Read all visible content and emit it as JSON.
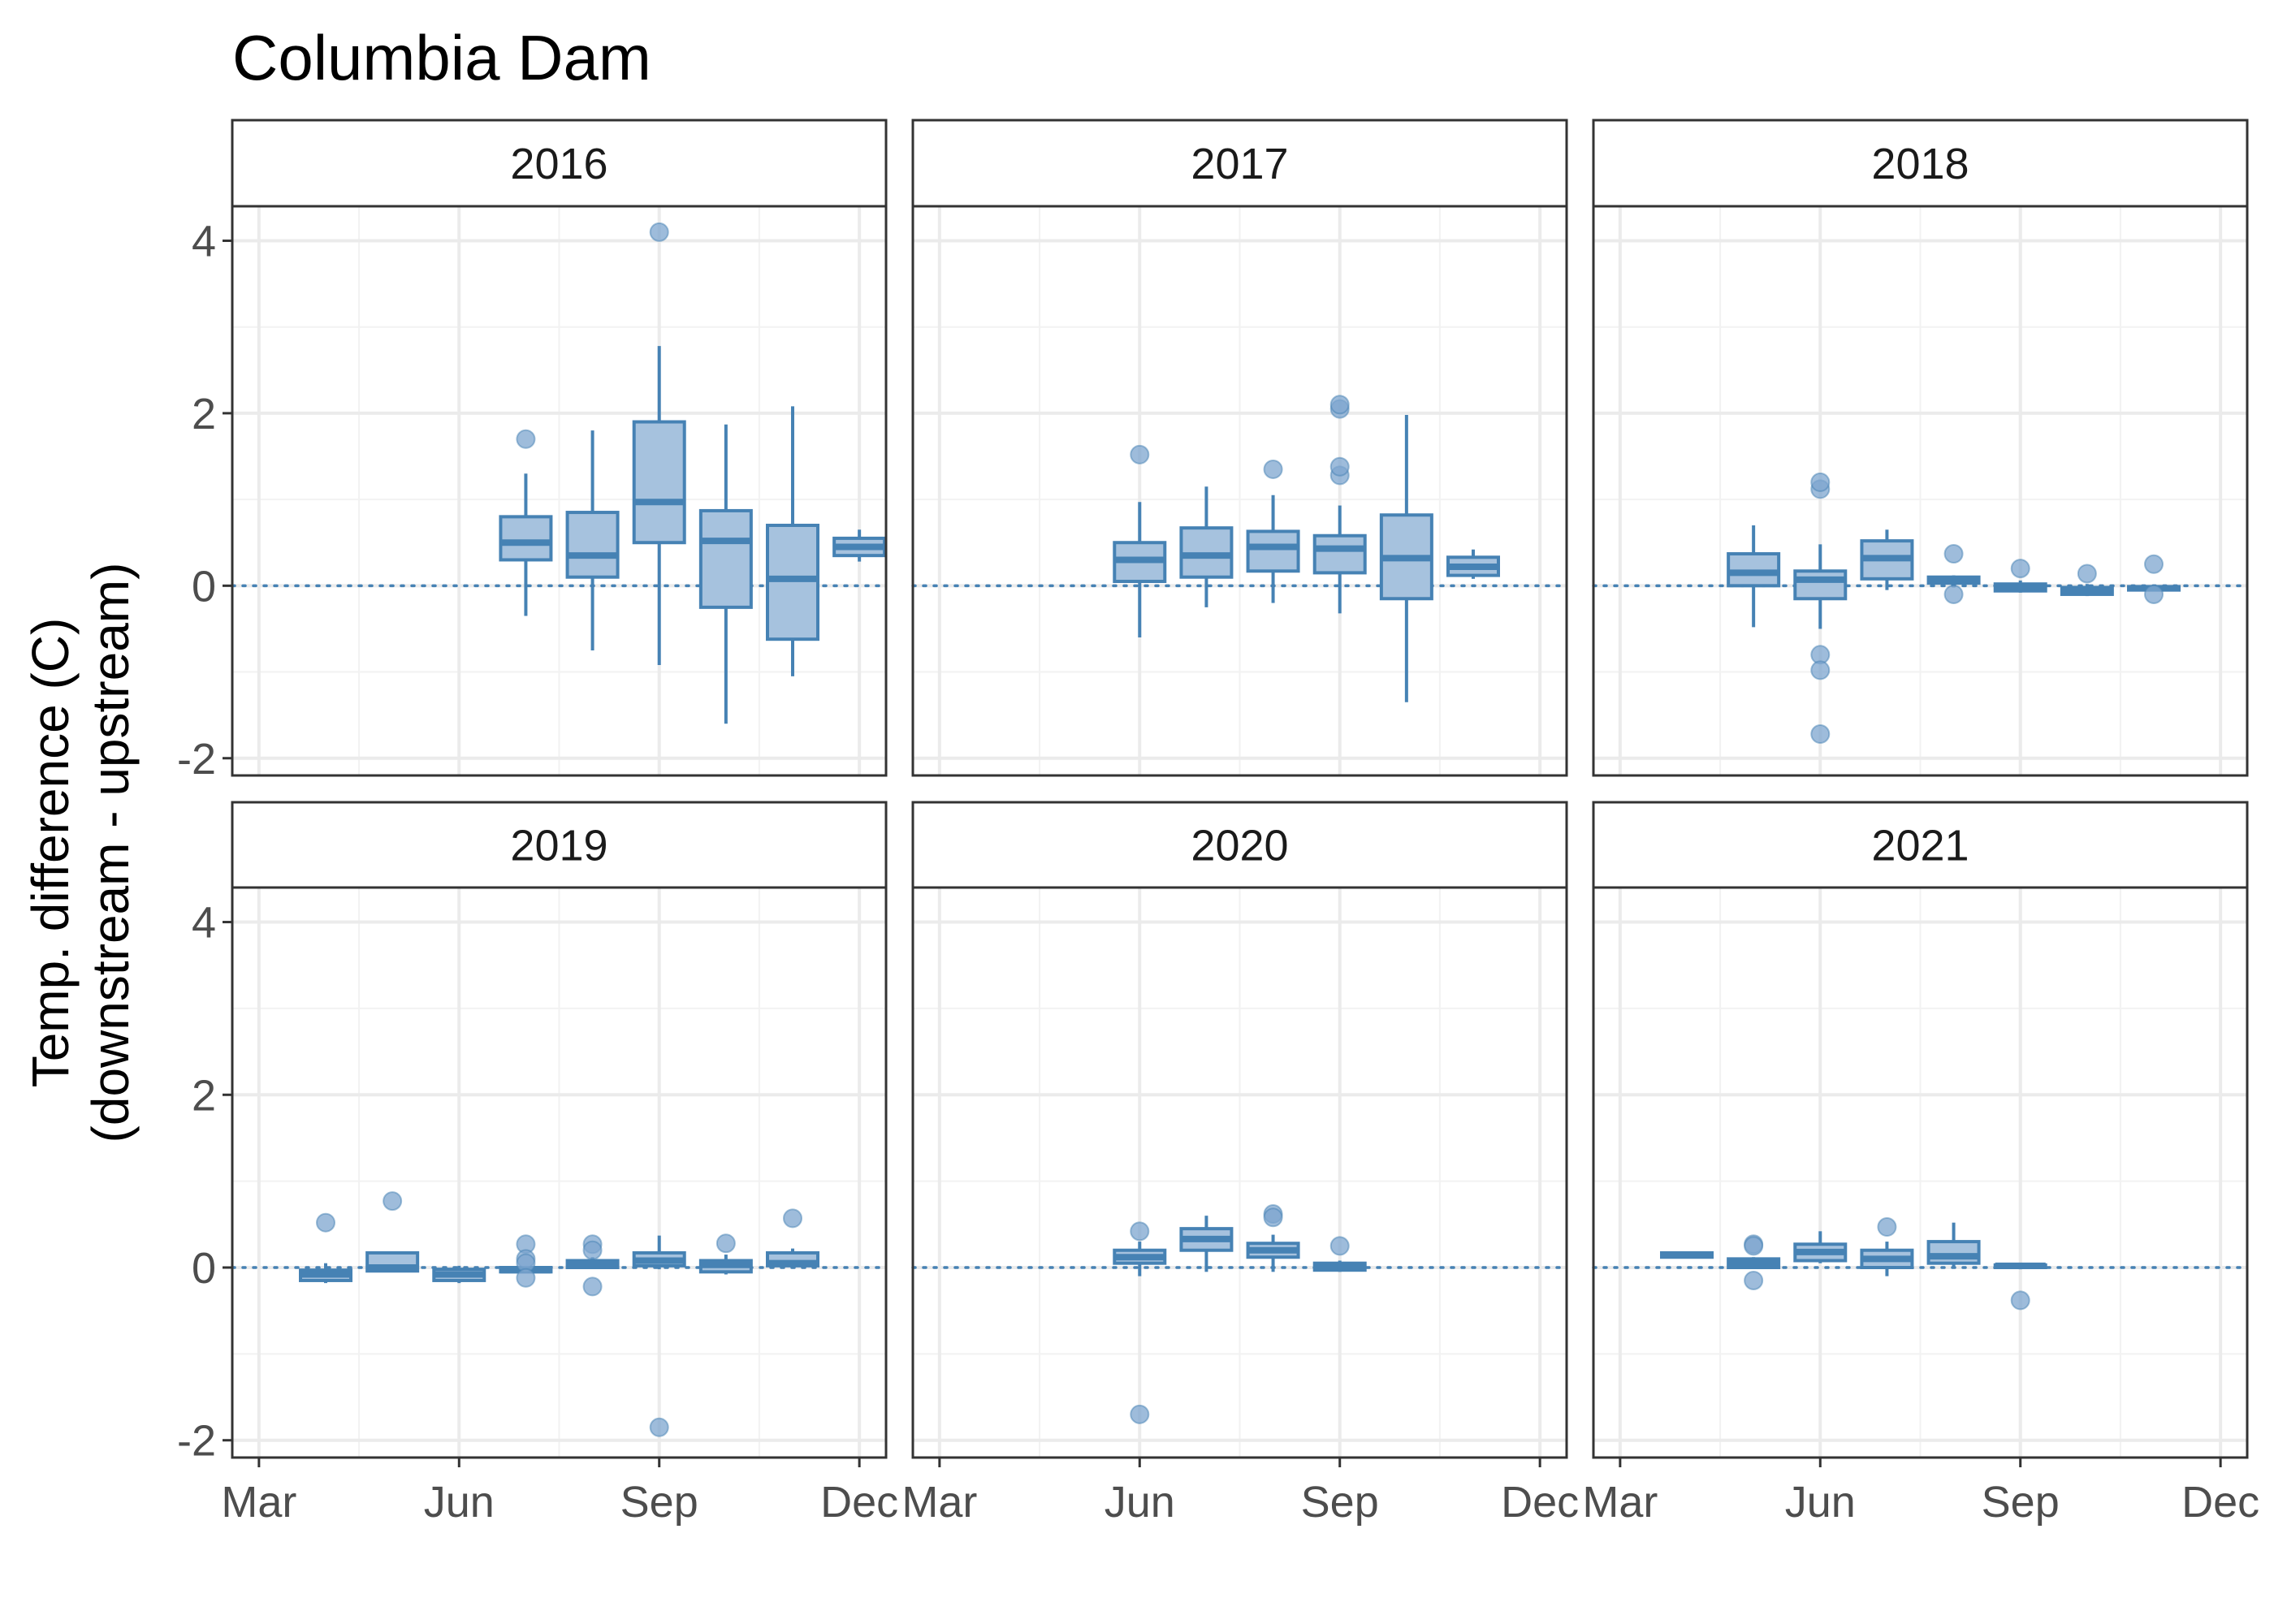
{
  "chart_data": {
    "type": "boxplot",
    "title": "Columbia Dam",
    "ylabel": [
      "Temp. difference (C)",
      "(downstream - upstream)"
    ],
    "xlabel": "",
    "x_axis": {
      "range_months": [
        2.6,
        12.4
      ],
      "ticks": [
        {
          "month": 3,
          "label": "Mar"
        },
        {
          "month": 6,
          "label": "Jun"
        },
        {
          "month": 9,
          "label": "Sep"
        },
        {
          "month": 12,
          "label": "Dec"
        }
      ]
    },
    "y_axis": {
      "range": [
        -2.2,
        4.4
      ],
      "ticks": [
        -2,
        0,
        2,
        4
      ],
      "tick_labels": [
        "-2",
        "0",
        "2",
        "4"
      ]
    },
    "reference_line": {
      "y": 0,
      "style": "dotted"
    },
    "grid": true,
    "facet_layout": {
      "rows": 2,
      "cols": 3
    },
    "colors": {
      "box_fill": "#a6c2de",
      "box_stroke": "#4682b4",
      "outlier_fill": "#7ea6cf",
      "grid": "#ebebeb",
      "panel_border": "#333333"
    },
    "facets": [
      {
        "label": "2016",
        "boxes": [
          {
            "month": 7.0,
            "whisker_low": -0.35,
            "q1": 0.3,
            "median": 0.5,
            "q3": 0.8,
            "whisker_high": 1.3,
            "outliers": [
              1.7
            ]
          },
          {
            "month": 8.0,
            "whisker_low": -0.75,
            "q1": 0.1,
            "median": 0.35,
            "q3": 0.85,
            "whisker_high": 1.8,
            "outliers": []
          },
          {
            "month": 9.0,
            "whisker_low": -0.92,
            "q1": 0.5,
            "median": 0.97,
            "q3": 1.9,
            "whisker_high": 2.78,
            "outliers": [
              4.1
            ]
          },
          {
            "month": 10.0,
            "whisker_low": -1.6,
            "q1": -0.25,
            "median": 0.52,
            "q3": 0.87,
            "whisker_high": 1.87,
            "outliers": []
          },
          {
            "month": 11.0,
            "whisker_low": -1.05,
            "q1": -0.62,
            "median": 0.08,
            "q3": 0.7,
            "whisker_high": 2.08,
            "outliers": []
          },
          {
            "month": 12.0,
            "whisker_low": 0.28,
            "q1": 0.35,
            "median": 0.45,
            "q3": 0.55,
            "whisker_high": 0.65,
            "outliers": []
          }
        ]
      },
      {
        "label": "2017",
        "boxes": [
          {
            "month": 6.0,
            "whisker_low": -0.6,
            "q1": 0.05,
            "median": 0.3,
            "q3": 0.5,
            "whisker_high": 0.97,
            "outliers": [
              1.52
            ]
          },
          {
            "month": 7.0,
            "whisker_low": -0.25,
            "q1": 0.1,
            "median": 0.35,
            "q3": 0.67,
            "whisker_high": 1.15,
            "outliers": []
          },
          {
            "month": 8.0,
            "whisker_low": -0.2,
            "q1": 0.17,
            "median": 0.45,
            "q3": 0.63,
            "whisker_high": 1.05,
            "outliers": [
              1.35
            ]
          },
          {
            "month": 9.0,
            "whisker_low": -0.32,
            "q1": 0.15,
            "median": 0.43,
            "q3": 0.58,
            "whisker_high": 0.93,
            "outliers": [
              1.28,
              1.38,
              2.05,
              2.1
            ]
          },
          {
            "month": 10.0,
            "whisker_low": -1.35,
            "q1": -0.15,
            "median": 0.32,
            "q3": 0.82,
            "whisker_high": 1.98,
            "outliers": []
          },
          {
            "month": 11.0,
            "whisker_low": 0.08,
            "q1": 0.12,
            "median": 0.22,
            "q3": 0.33,
            "whisker_high": 0.42,
            "outliers": []
          }
        ]
      },
      {
        "label": "2018",
        "boxes": [
          {
            "month": 5.0,
            "whisker_low": -0.48,
            "q1": 0.0,
            "median": 0.15,
            "q3": 0.37,
            "whisker_high": 0.7,
            "outliers": []
          },
          {
            "month": 6.0,
            "whisker_low": -0.5,
            "q1": -0.15,
            "median": 0.07,
            "q3": 0.17,
            "whisker_high": 0.48,
            "outliers": [
              1.12,
              1.2,
              -0.8,
              -0.98,
              -1.72
            ]
          },
          {
            "month": 7.0,
            "whisker_low": -0.05,
            "q1": 0.08,
            "median": 0.32,
            "q3": 0.52,
            "whisker_high": 0.65,
            "outliers": []
          },
          {
            "month": 8.0,
            "whisker_low": -0.02,
            "q1": 0.03,
            "median": 0.07,
            "q3": 0.1,
            "whisker_high": 0.12,
            "outliers": [
              0.37,
              -0.1
            ]
          },
          {
            "month": 9.0,
            "whisker_low": -0.08,
            "q1": -0.06,
            "median": -0.02,
            "q3": 0.02,
            "whisker_high": 0.06,
            "outliers": [
              0.2
            ]
          },
          {
            "month": 10.0,
            "whisker_low": -0.12,
            "q1": -0.1,
            "median": -0.06,
            "q3": -0.02,
            "whisker_high": 0.02,
            "outliers": [
              0.14
            ]
          },
          {
            "month": 11.0,
            "whisker_low": -0.06,
            "q1": -0.05,
            "median": -0.03,
            "q3": -0.01,
            "whisker_high": 0.0,
            "outliers": [
              0.25,
              -0.1
            ]
          }
        ]
      },
      {
        "label": "2019",
        "boxes": [
          {
            "month": 4.0,
            "whisker_low": -0.18,
            "q1": -0.15,
            "median": -0.08,
            "q3": -0.03,
            "whisker_high": 0.05,
            "outliers": [
              0.52
            ]
          },
          {
            "month": 5.0,
            "whisker_low": -0.05,
            "q1": -0.04,
            "median": 0.0,
            "q3": 0.17,
            "whisker_high": 0.18,
            "outliers": [
              0.77
            ]
          },
          {
            "month": 6.0,
            "whisker_low": -0.18,
            "q1": -0.15,
            "median": -0.08,
            "q3": -0.02,
            "whisker_high": 0.02,
            "outliers": []
          },
          {
            "month": 7.0,
            "whisker_low": -0.05,
            "q1": -0.05,
            "median": -0.03,
            "q3": 0.0,
            "whisker_high": 0.02,
            "outliers": [
              0.27,
              0.1,
              0.05,
              -0.12
            ]
          },
          {
            "month": 8.0,
            "whisker_low": 0.0,
            "q1": 0.0,
            "median": 0.03,
            "q3": 0.08,
            "whisker_high": 0.12,
            "outliers": [
              0.27,
              0.2,
              -0.22
            ]
          },
          {
            "month": 9.0,
            "whisker_low": -0.02,
            "q1": 0.02,
            "median": 0.08,
            "q3": 0.17,
            "whisker_high": 0.37,
            "outliers": [
              -1.85
            ]
          },
          {
            "month": 10.0,
            "whisker_low": -0.08,
            "q1": -0.05,
            "median": 0.03,
            "q3": 0.08,
            "whisker_high": 0.15,
            "outliers": [
              0.28
            ]
          },
          {
            "month": 11.0,
            "whisker_low": 0.0,
            "q1": 0.02,
            "median": 0.05,
            "q3": 0.17,
            "whisker_high": 0.22,
            "outliers": [
              0.57
            ]
          }
        ]
      },
      {
        "label": "2020",
        "boxes": [
          {
            "month": 6.0,
            "whisker_low": -0.1,
            "q1": 0.05,
            "median": 0.12,
            "q3": 0.2,
            "whisker_high": 0.3,
            "outliers": [
              0.42,
              -1.7
            ]
          },
          {
            "month": 7.0,
            "whisker_low": -0.05,
            "q1": 0.2,
            "median": 0.33,
            "q3": 0.45,
            "whisker_high": 0.6,
            "outliers": []
          },
          {
            "month": 8.0,
            "whisker_low": -0.05,
            "q1": 0.12,
            "median": 0.2,
            "q3": 0.28,
            "whisker_high": 0.38,
            "outliers": [
              0.62,
              0.58
            ]
          },
          {
            "month": 9.0,
            "whisker_low": -0.05,
            "q1": -0.03,
            "median": 0.02,
            "q3": 0.05,
            "whisker_high": 0.08,
            "outliers": [
              0.25
            ]
          }
        ]
      },
      {
        "label": "2021",
        "boxes": [
          {
            "month": 4.0,
            "whisker_low": 0.12,
            "q1": 0.12,
            "median": 0.15,
            "q3": 0.17,
            "whisker_high": 0.17,
            "outliers": []
          },
          {
            "month": 5.0,
            "whisker_low": 0.0,
            "q1": 0.0,
            "median": 0.05,
            "q3": 0.1,
            "whisker_high": 0.12,
            "outliers": [
              0.27,
              0.25,
              -0.15
            ]
          },
          {
            "month": 6.0,
            "whisker_low": 0.05,
            "q1": 0.08,
            "median": 0.18,
            "q3": 0.27,
            "whisker_high": 0.42,
            "outliers": []
          },
          {
            "month": 7.0,
            "whisker_low": -0.1,
            "q1": 0.0,
            "median": 0.1,
            "q3": 0.2,
            "whisker_high": 0.3,
            "outliers": [
              0.47
            ]
          },
          {
            "month": 8.0,
            "whisker_low": 0.0,
            "q1": 0.05,
            "median": 0.13,
            "q3": 0.3,
            "whisker_high": 0.52,
            "outliers": []
          },
          {
            "month": 9.0,
            "whisker_low": -0.02,
            "q1": 0.0,
            "median": 0.02,
            "q3": 0.03,
            "whisker_high": 0.04,
            "outliers": [
              -0.38
            ]
          }
        ]
      }
    ]
  }
}
